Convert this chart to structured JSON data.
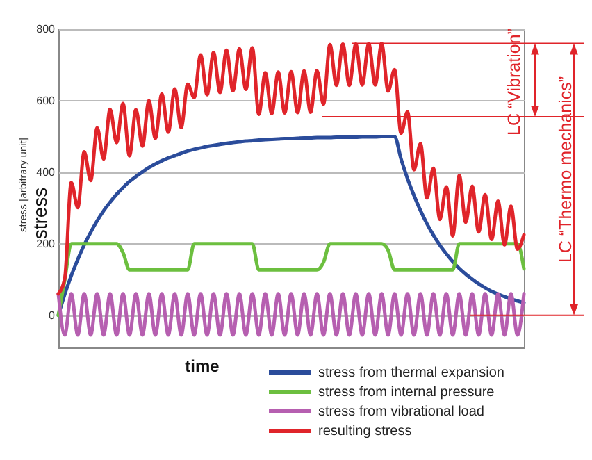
{
  "chart_data": {
    "type": "line",
    "xlabel": "time",
    "ylabel": "stress",
    "categories": [
      null,
      null,
      null,
      null,
      null,
      null,
      null,
      null,
      null,
      null,
      null,
      null,
      null,
      null,
      null,
      null,
      null,
      null,
      null,
      null,
      null,
      null,
      null,
      null,
      null,
      null,
      null,
      null,
      null,
      null,
      null,
      null,
      null,
      null,
      null,
      null,
      null,
      null,
      null,
      null,
      null,
      null,
      null,
      null,
      null,
      null,
      null,
      null,
      null,
      null,
      null,
      null,
      null,
      null,
      null,
      null,
      null,
      null,
      null,
      null,
      null,
      null,
      null,
      null,
      null,
      null,
      null,
      null,
      null,
      null,
      null,
      null,
      null
    ],
    "ylim": [
      -90,
      800
    ],
    "yticks": [
      0,
      200,
      400,
      600,
      800
    ],
    "grid": "y",
    "tick_labels": "y",
    "legend": "bottom right",
    "series": [
      {
        "name": "stress from thermal expansion",
        "color": "#2b4c9b",
        "values": [
          0,
          59,
          111,
          156,
          197,
          232,
          264,
          292,
          316,
          338,
          357,
          374,
          388,
          401,
          413,
          423,
          432,
          440,
          446,
          453,
          459,
          464,
          468,
          472,
          475,
          478,
          481,
          483,
          485,
          487,
          488,
          490,
          491,
          492,
          493,
          494,
          494,
          495,
          496,
          496,
          497,
          497,
          497,
          498,
          498,
          498,
          498,
          499,
          499,
          499,
          500,
          500,
          500,
          437,
          382,
          335,
          293,
          256,
          224,
          196,
          172,
          150,
          131,
          115,
          101,
          88,
          77,
          67,
          59,
          52,
          45,
          40,
          35
        ]
      },
      {
        "name": "stress from internal pressure",
        "color": "#6cbf3f",
        "values": [
          0,
          100,
          200,
          200,
          200,
          200,
          200,
          200,
          200,
          200,
          175,
          127,
          127,
          127,
          127,
          127,
          127,
          127,
          127,
          127,
          127,
          200,
          200,
          200,
          200,
          200,
          200,
          200,
          200,
          200,
          200,
          127,
          127,
          127,
          127,
          127,
          127,
          127,
          127,
          127,
          127,
          148,
          200,
          200,
          200,
          200,
          200,
          200,
          200,
          200,
          200,
          182,
          127,
          127,
          127,
          127,
          127,
          127,
          127,
          127,
          127,
          127,
          200,
          200,
          200,
          200,
          200,
          200,
          200,
          200,
          200,
          200,
          130
        ]
      },
      {
        "name": "stress from vibrational load",
        "color": "#b65fb0",
        "values": [
          60,
          -55,
          60,
          -55,
          60,
          -55,
          60,
          -55,
          60,
          -55,
          60,
          -55,
          60,
          -55,
          60,
          -55,
          60,
          -55,
          60,
          -55,
          60,
          -55,
          60,
          -55,
          60,
          -55,
          60,
          -55,
          60,
          -55,
          60,
          -55,
          60,
          -55,
          60,
          -55,
          60,
          -55,
          60,
          -55,
          60,
          -55,
          60,
          -55,
          60,
          -55,
          60,
          -55,
          60,
          -55,
          60,
          -55,
          60,
          -55,
          60,
          -55,
          60,
          -55,
          60,
          -55,
          60,
          -55,
          60,
          -55,
          60,
          -55,
          60,
          -55,
          60,
          -55,
          60,
          -55,
          60
        ]
      },
      {
        "name": "resulting stress",
        "color": "#e0242a",
        "values": [
          60,
          104,
          371,
          301,
          457,
          377,
          524,
          437,
          576,
          483,
          592,
          446,
          575,
          473,
          600,
          495,
          619,
          512,
          633,
          525,
          646,
          609,
          728,
          617,
          735,
          623,
          741,
          628,
          745,
          632,
          748,
          562,
          678,
          564,
          680,
          566,
          681,
          567,
          683,
          568,
          684,
          590,
          757,
          643,
          758,
          643,
          758,
          644,
          759,
          644,
          760,
          627,
          687,
          509,
          569,
          407,
          480,
          328,
          411,
          268,
          359,
          222,
          391,
          260,
          361,
          233,
          337,
          212,
          319,
          197,
          305,
          185,
          225
        ]
      }
    ],
    "ref_lines": [
      {
        "axis": "y",
        "value": 760,
        "color": "#e0242a"
      },
      {
        "axis": "y",
        "value": 555,
        "color": "#e0242a"
      },
      {
        "axis": "y",
        "value": 0,
        "color": "#e0242a"
      }
    ],
    "annotations": [
      "stress [arbitrary unit]",
      "LC “Vibration”",
      "LC “Thermo mechanics”"
    ]
  }
}
